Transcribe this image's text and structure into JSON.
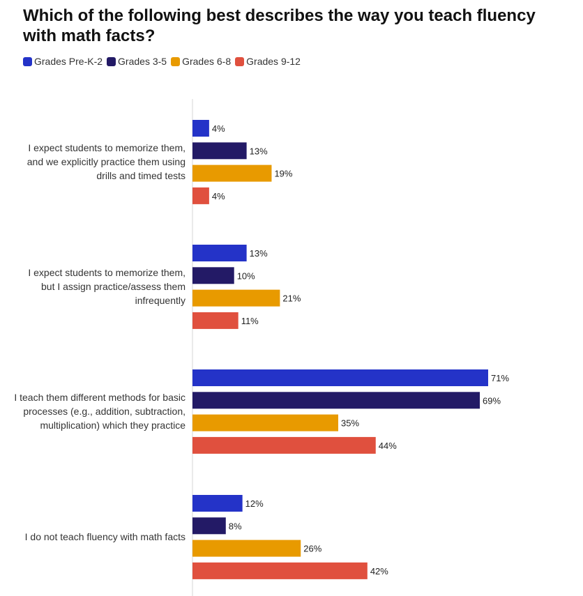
{
  "title": "Which of the following best describes the way you teach fluency with math facts?",
  "legend": [
    {
      "name": "Grades Pre-K-2",
      "color": "#2433c8"
    },
    {
      "name": "Grades 3-5",
      "color": "#231a66"
    },
    {
      "name": "Grades 6-8",
      "color": "#e89a00"
    },
    {
      "name": "Grades 9-12",
      "color": "#e0503e"
    }
  ],
  "chart_data": {
    "type": "bar",
    "orientation": "horizontal",
    "categories": [
      "I expect students to memorize them, and we explicitly practice them using drills and timed tests",
      "I expect students to memorize them, but I assign practice/assess them infrequently",
      "I teach them different methods for basic processes (e.g., addition, subtraction, multiplication) which they practice",
      "I do not teach fluency with math facts"
    ],
    "series": [
      {
        "name": "Grades Pre-K-2",
        "color": "#2433c8",
        "values": [
          4,
          13,
          71,
          12
        ]
      },
      {
        "name": "Grades 3-5",
        "color": "#231a66",
        "values": [
          13,
          10,
          69,
          8
        ]
      },
      {
        "name": "Grades 6-8",
        "color": "#e89a00",
        "values": [
          19,
          21,
          35,
          26
        ]
      },
      {
        "name": "Grades 9-12",
        "color": "#e0503e",
        "values": [
          4,
          11,
          44,
          42
        ]
      }
    ],
    "value_suffix": "%",
    "xlim": [
      0,
      71
    ],
    "legend_position": "top-left",
    "grid": false
  }
}
